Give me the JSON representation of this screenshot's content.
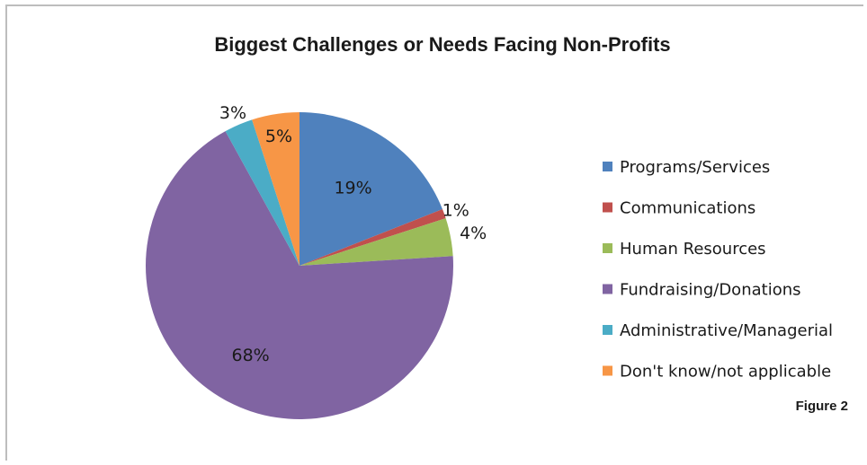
{
  "chart_data": {
    "type": "pie",
    "title": "Biggest Challenges or Needs Facing Non-Profits",
    "categories": [
      "Programs/Services",
      "Communications",
      "Human Resources",
      "Fundraising/Donations",
      "Administrative/Managerial",
      "Don't know/not applicable"
    ],
    "values": [
      19,
      1,
      4,
      68,
      3,
      5
    ],
    "data_labels": [
      "19%",
      "1%",
      "4%",
      "68%",
      "3%",
      "5%"
    ],
    "colors": [
      "#4f81bd",
      "#c0504d",
      "#9bbb59",
      "#8064a2",
      "#4bacc6",
      "#f79646"
    ],
    "legend_position": "right",
    "start_angle": "12 o'clock, clockwise"
  },
  "figure_label": "Figure 2"
}
